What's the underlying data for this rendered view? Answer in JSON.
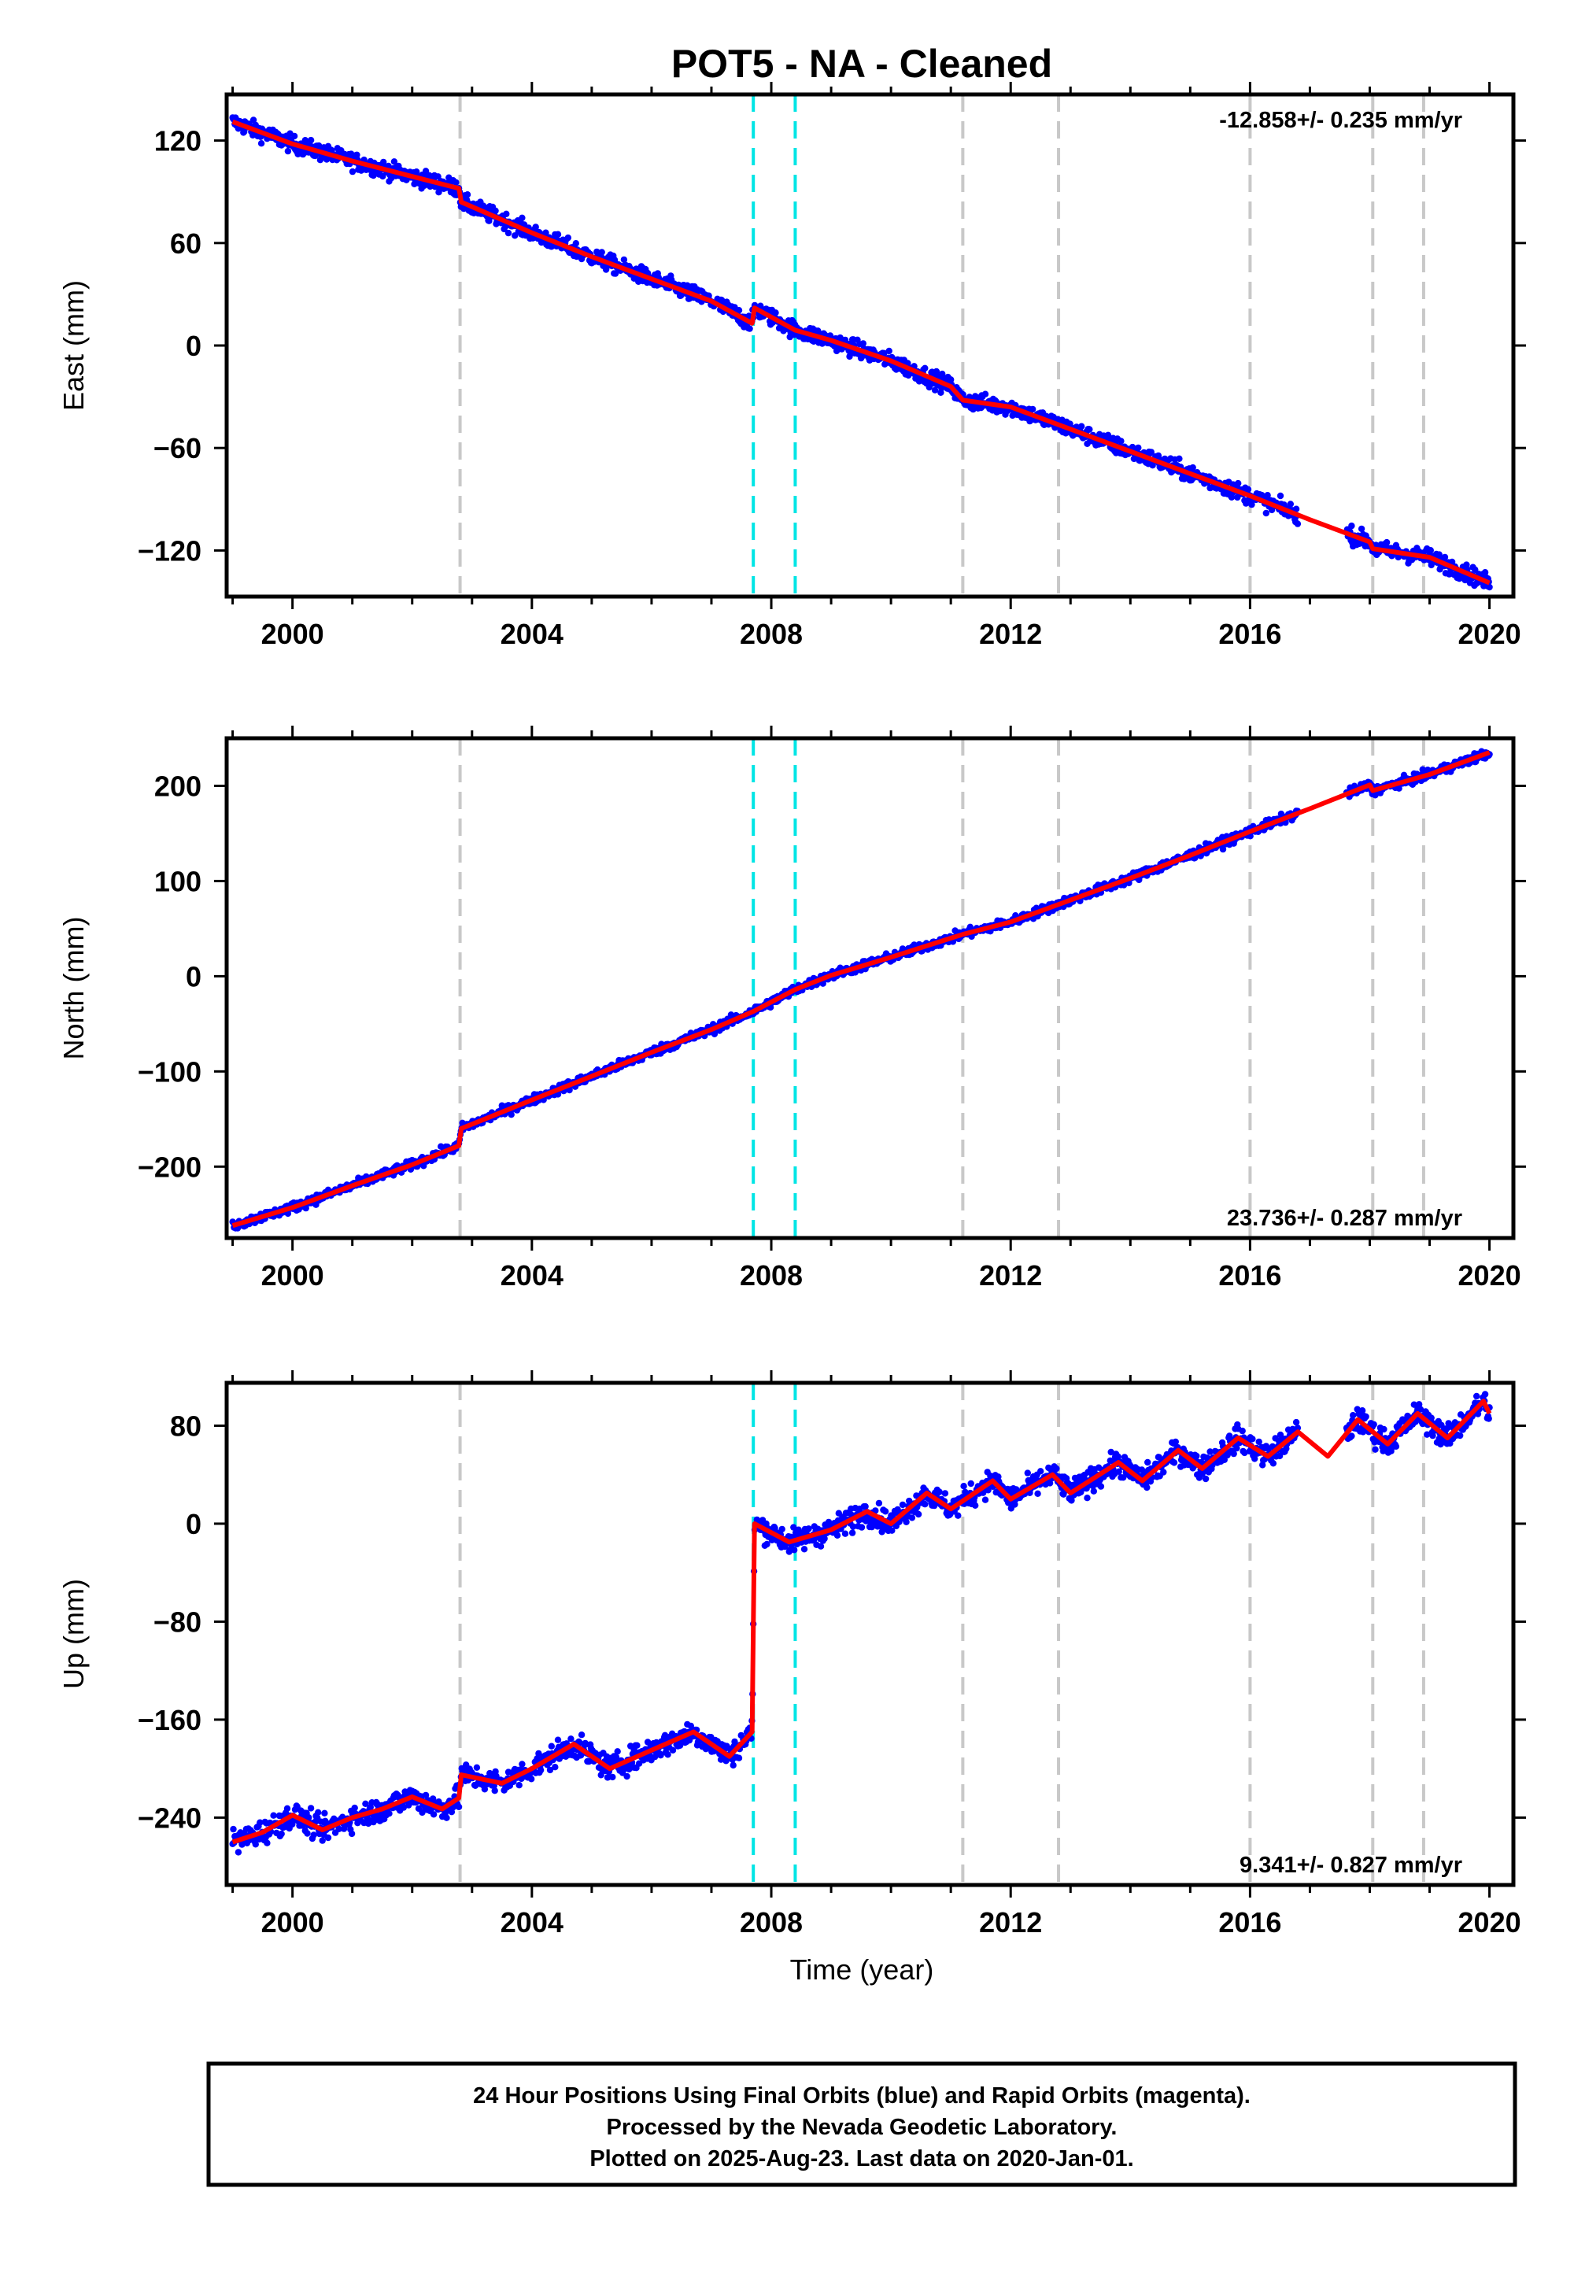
{
  "title": "POT5  - NA - Cleaned",
  "xlabel": "Time (year)",
  "footer": [
    "24 Hour Positions Using Final Orbits (blue) and Rapid Orbits (magenta).",
    "Processed by the Nevada Geodetic Laboratory.",
    "Plotted on 2025-Aug-23. Last data on 2020-Jan-01."
  ],
  "colors": {
    "data": "#0000ff",
    "model": "#ff0000",
    "equipment_change": "#c8c8c8",
    "earthquake": "#00e5e5"
  },
  "chart_data": [
    {
      "type": "scatter",
      "panel": "east",
      "ylabel": "East (mm)",
      "rate": "-12.858+/- 0.235 mm/yr",
      "xlim": [
        1998.9,
        2020.4
      ],
      "ylim": [
        -147,
        147
      ],
      "xticks": [
        2000,
        2004,
        2008,
        2012,
        2016,
        2020
      ],
      "yticks": [
        -120,
        -60,
        0,
        60,
        120
      ],
      "grey_lines": [
        2002.8,
        2012.8,
        2011.2,
        2016.0,
        2018.05,
        2018.9
      ],
      "cyan_lines": [
        2007.7,
        2008.4
      ],
      "series": [
        {
          "kind": "model",
          "points": [
            [
              1999.0,
              131
            ],
            [
              2000.0,
              118
            ],
            [
              2001.0,
              108
            ],
            [
              2002.0,
              99
            ],
            [
              2002.78,
              92
            ],
            [
              2002.82,
              84
            ],
            [
              2004.0,
              66
            ],
            [
              2005.0,
              52
            ],
            [
              2006.0,
              39
            ],
            [
              2007.0,
              26
            ],
            [
              2007.68,
              13
            ],
            [
              2007.72,
              22
            ],
            [
              2008.4,
              9
            ],
            [
              2009.0,
              3
            ],
            [
              2010.0,
              -9
            ],
            [
              2011.0,
              -24
            ],
            [
              2011.2,
              -32
            ],
            [
              2012.0,
              -36
            ],
            [
              2013.0,
              -49
            ],
            [
              2014.0,
              -62
            ],
            [
              2015.0,
              -75
            ],
            [
              2016.0,
              -88
            ],
            [
              2017.0,
              -102
            ],
            [
              2018.0,
              -115
            ],
            [
              2018.05,
              -119
            ],
            [
              2019.0,
              -124
            ],
            [
              2020.0,
              -139
            ]
          ]
        }
      ]
    },
    {
      "type": "scatter",
      "panel": "north",
      "ylabel": "North (mm)",
      "rate": "23.736+/- 0.287 mm/yr",
      "xlim": [
        1998.9,
        2020.4
      ],
      "ylim": [
        -275,
        250
      ],
      "xticks": [
        2000,
        2004,
        2008,
        2012,
        2016,
        2020
      ],
      "yticks": [
        -200,
        -100,
        0,
        100,
        200
      ],
      "grey_lines": [
        2002.8,
        2012.8,
        2011.2,
        2016.0,
        2018.05,
        2018.9
      ],
      "cyan_lines": [
        2007.7,
        2008.4
      ],
      "series": [
        {
          "kind": "model",
          "points": [
            [
              1999.0,
              -262
            ],
            [
              2000.0,
              -243
            ],
            [
              2001.0,
              -220
            ],
            [
              2002.0,
              -198
            ],
            [
              2002.78,
              -178
            ],
            [
              2002.82,
              -160
            ],
            [
              2004.0,
              -130
            ],
            [
              2005.0,
              -105
            ],
            [
              2006.0,
              -80
            ],
            [
              2007.0,
              -56
            ],
            [
              2007.7,
              -37
            ],
            [
              2008.4,
              -14
            ],
            [
              2009.0,
              1
            ],
            [
              2010.0,
              20
            ],
            [
              2011.0,
              40
            ],
            [
              2011.2,
              44
            ],
            [
              2012.0,
              57
            ],
            [
              2013.0,
              80
            ],
            [
              2014.0,
              103
            ],
            [
              2015.0,
              127
            ],
            [
              2016.0,
              152
            ],
            [
              2017.0,
              176
            ],
            [
              2018.0,
              201
            ],
            [
              2018.05,
              195
            ],
            [
              2019.0,
              212
            ],
            [
              2020.0,
              235
            ]
          ]
        }
      ]
    },
    {
      "type": "scatter",
      "panel": "up",
      "ylabel": "Up (mm)",
      "rate": "9.341+/- 0.827 mm/yr",
      "xlim": [
        1998.9,
        2020.4
      ],
      "ylim": [
        -295,
        115
      ],
      "xticks": [
        2000,
        2004,
        2008,
        2012,
        2016,
        2020
      ],
      "yticks": [
        -240,
        -160,
        -80,
        0,
        80
      ],
      "grey_lines": [
        2002.8,
        2012.8,
        2011.2,
        2016.0,
        2018.05,
        2018.9
      ],
      "cyan_lines": [
        2007.7,
        2008.4
      ],
      "series": [
        {
          "kind": "model",
          "points": [
            [
              1999.0,
              -260
            ],
            [
              1999.5,
              -252
            ],
            [
              2000.0,
              -238
            ],
            [
              2000.5,
              -250
            ],
            [
              2001.0,
              -240
            ],
            [
              2001.5,
              -233
            ],
            [
              2002.0,
              -223
            ],
            [
              2002.5,
              -233
            ],
            [
              2002.78,
              -224
            ],
            [
              2002.82,
              -205
            ],
            [
              2003.5,
              -212
            ],
            [
              2004.0,
              -200
            ],
            [
              2004.7,
              -180
            ],
            [
              2005.3,
              -200
            ],
            [
              2006.0,
              -185
            ],
            [
              2006.7,
              -170
            ],
            [
              2007.3,
              -190
            ],
            [
              2007.68,
              -170
            ],
            [
              2007.72,
              0
            ],
            [
              2008.3,
              -15
            ],
            [
              2009.0,
              -5
            ],
            [
              2009.6,
              10
            ],
            [
              2010.0,
              0
            ],
            [
              2010.6,
              25
            ],
            [
              2011.0,
              12
            ],
            [
              2011.7,
              35
            ],
            [
              2012.0,
              20
            ],
            [
              2012.7,
              40
            ],
            [
              2013.0,
              25
            ],
            [
              2013.8,
              50
            ],
            [
              2014.2,
              35
            ],
            [
              2014.8,
              60
            ],
            [
              2015.2,
              45
            ],
            [
              2015.8,
              70
            ],
            [
              2016.3,
              55
            ],
            [
              2016.8,
              75
            ],
            [
              2017.3,
              55
            ],
            [
              2017.8,
              85
            ],
            [
              2018.3,
              65
            ],
            [
              2018.8,
              90
            ],
            [
              2019.3,
              70
            ],
            [
              2019.9,
              100
            ],
            [
              2020.0,
              90
            ]
          ]
        }
      ]
    }
  ]
}
